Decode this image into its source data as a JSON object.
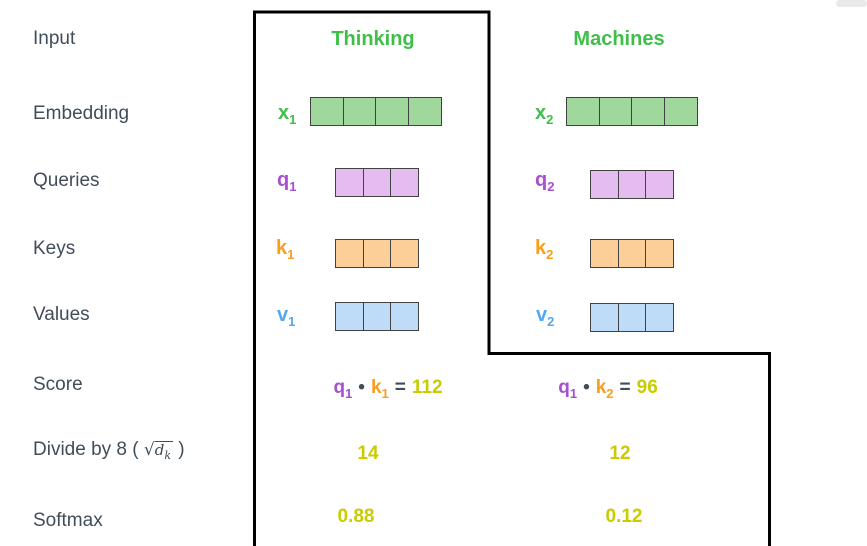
{
  "colors": {
    "label": "#414d59",
    "green": "#3fbf4a",
    "green_fill": "#a0d89b",
    "purple": "#a84fd0",
    "purple_fill": "#e4bcf0",
    "orange": "#f99d1c",
    "orange_fill": "#fbcf97",
    "blue": "#54a7f2",
    "blue_fill": "#bedcf8",
    "yellow": "#c9cc00",
    "cell_border": "#424242",
    "frame": "#000000"
  },
  "row_labels": {
    "input": "Input",
    "embedding": "Embedding",
    "queries": "Queries",
    "keys": "Keys",
    "values": "Values",
    "score": "Score",
    "softmax": "Softmax"
  },
  "divide_label": {
    "pre": "Divide by 8 (",
    "sqrt": "√",
    "var": "d",
    "var_sub": "k",
    "post": ")"
  },
  "columns": [
    {
      "word": "Thinking",
      "embedding": {
        "base": "x",
        "sub": "1",
        "cells": 4
      },
      "query": {
        "base": "q",
        "sub": "1",
        "cells": 3
      },
      "key": {
        "base": "k",
        "sub": "1",
        "cells": 3
      },
      "value": {
        "base": "v",
        "sub": "1",
        "cells": 3
      },
      "score": {
        "q_base": "q",
        "q_sub": "1",
        "dot": "•",
        "k_base": "k",
        "k_sub": "1",
        "equals": "=",
        "result": "112"
      },
      "divided": "14",
      "softmax": "0.88"
    },
    {
      "word": "Machines",
      "embedding": {
        "base": "x",
        "sub": "2",
        "cells": 4
      },
      "query": {
        "base": "q",
        "sub": "2",
        "cells": 3
      },
      "key": {
        "base": "k",
        "sub": "2",
        "cells": 3
      },
      "value": {
        "base": "v",
        "sub": "2",
        "cells": 3
      },
      "score": {
        "q_base": "q",
        "q_sub": "1",
        "dot": "•",
        "k_base": "k",
        "k_sub": "2",
        "equals": "=",
        "result": "96"
      },
      "divided": "12",
      "softmax": "0.12"
    }
  ]
}
